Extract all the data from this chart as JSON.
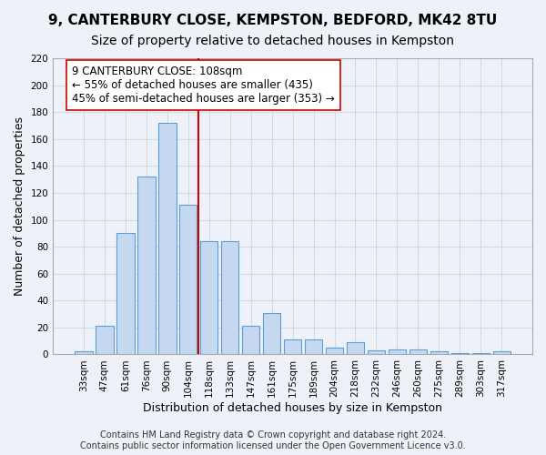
{
  "title": "9, CANTERBURY CLOSE, KEMPSTON, BEDFORD, MK42 8TU",
  "subtitle": "Size of property relative to detached houses in Kempston",
  "xlabel": "Distribution of detached houses by size in Kempston",
  "ylabel": "Number of detached properties",
  "categories": [
    "33sqm",
    "47sqm",
    "61sqm",
    "76sqm",
    "90sqm",
    "104sqm",
    "118sqm",
    "133sqm",
    "147sqm",
    "161sqm",
    "175sqm",
    "189sqm",
    "204sqm",
    "218sqm",
    "232sqm",
    "246sqm",
    "260sqm",
    "275sqm",
    "289sqm",
    "303sqm",
    "317sqm"
  ],
  "values": [
    2,
    21,
    90,
    132,
    172,
    111,
    84,
    84,
    21,
    31,
    11,
    11,
    5,
    9,
    3,
    4,
    4,
    2,
    1,
    1,
    2
  ],
  "bar_color": "#c5d8f0",
  "bar_edge_color": "#5a9fd4",
  "vline_color": "#cc0000",
  "vline_x": 5.5,
  "annotation_text": "9 CANTERBURY CLOSE: 108sqm\n← 55% of detached houses are smaller (435)\n45% of semi-detached houses are larger (353) →",
  "ylim": [
    0,
    220
  ],
  "yticks": [
    0,
    20,
    40,
    60,
    80,
    100,
    120,
    140,
    160,
    180,
    200,
    220
  ],
  "grid_color": "#d0d8e8",
  "background_color": "#eef2f8",
  "footer_text": "Contains HM Land Registry data © Crown copyright and database right 2024.\nContains public sector information licensed under the Open Government Licence v3.0.",
  "title_fontsize": 11,
  "subtitle_fontsize": 10,
  "xlabel_fontsize": 9,
  "ylabel_fontsize": 9,
  "tick_fontsize": 7.5,
  "annotation_fontsize": 8.5,
  "footer_fontsize": 7
}
